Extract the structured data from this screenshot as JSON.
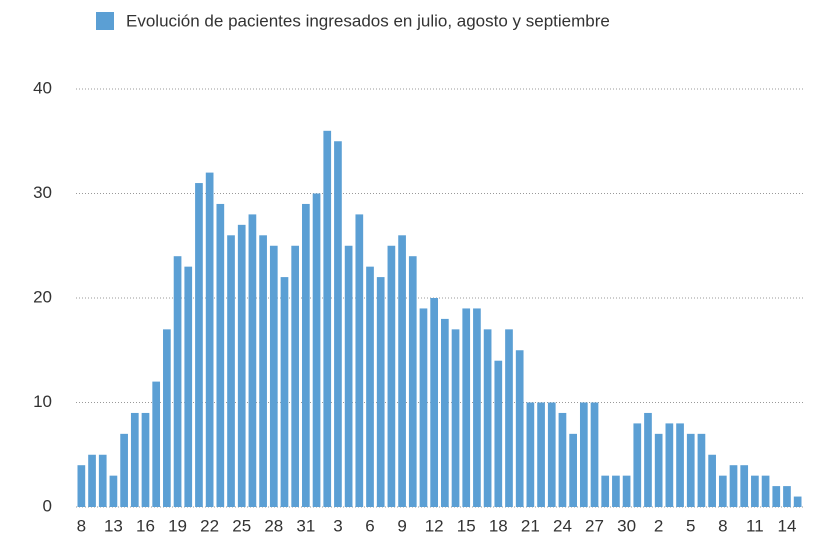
{
  "chart_data": {
    "type": "bar",
    "legend": "Evolución de pacientes ingresados en julio, agosto y septiembre",
    "color": "#5b9fd4",
    "categories": [
      "8",
      null,
      null,
      "13",
      null,
      null,
      "16",
      null,
      null,
      "19",
      null,
      null,
      "22",
      null,
      null,
      "25",
      null,
      null,
      "28",
      null,
      null,
      "31",
      null,
      null,
      "3",
      null,
      null,
      "6",
      null,
      null,
      "9",
      null,
      null,
      "12",
      null,
      null,
      "15",
      null,
      null,
      "18",
      null,
      null,
      "21",
      null,
      null,
      "24",
      null,
      null,
      "27",
      null,
      null,
      "30",
      null,
      null,
      "2",
      null,
      null,
      "5",
      null,
      null,
      "8",
      null,
      null,
      "11",
      null,
      null,
      "14",
      null
    ],
    "values": [
      4,
      5,
      5,
      3,
      7,
      9,
      9,
      12,
      17,
      24,
      23,
      31,
      32,
      29,
      26,
      27,
      28,
      26,
      25,
      22,
      25,
      29,
      30,
      36,
      35,
      25,
      28,
      23,
      22,
      25,
      26,
      24,
      19,
      20,
      18,
      17,
      19,
      19,
      17,
      14,
      17,
      15,
      10,
      10,
      10,
      9,
      7,
      10,
      10,
      3,
      3,
      3,
      8,
      9,
      7,
      8,
      8,
      7,
      7,
      5,
      3,
      4,
      4,
      3,
      3,
      2,
      2,
      1
    ],
    "ylim": [
      0,
      40
    ],
    "yticks": [
      0,
      10,
      20,
      30,
      40
    ],
    "grid": true
  }
}
